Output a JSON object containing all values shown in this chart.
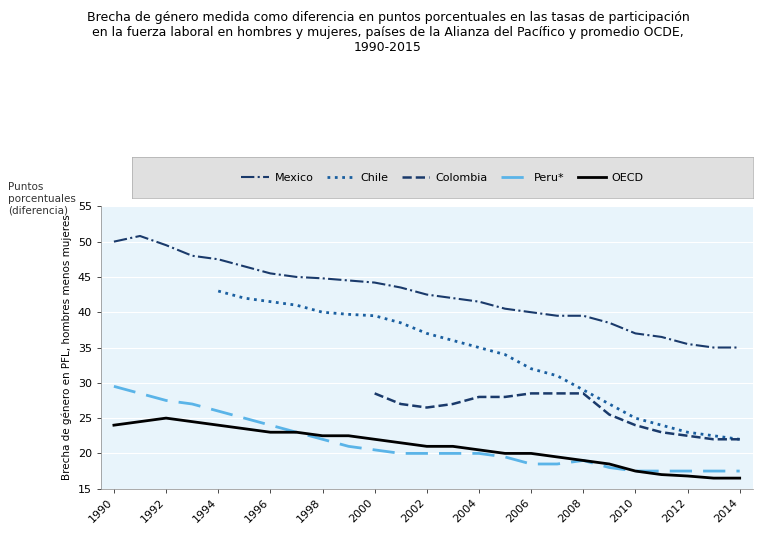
{
  "title": "Brecha de género medida como diferencia en puntos porcentuales en las tasas de participación\nen la fuerza laboral en hombres y mujeres, países de la Alianza del Pacífico y promedio OCDE,\n1990-2015",
  "ylabel": "Brecha de género en PFL, hombres menos mujeres",
  "ylabel_top": "Puntos\nporcentuales\n(diferencia)",
  "plot_bg_color": "#e8f4fb",
  "ylim": [
    15,
    55
  ],
  "yticks": [
    15,
    20,
    25,
    30,
    35,
    40,
    45,
    50,
    55
  ],
  "xticks": [
    1990,
    1992,
    1994,
    1996,
    1998,
    2000,
    2002,
    2004,
    2006,
    2008,
    2010,
    2012,
    2014
  ],
  "series": {
    "Mexico": {
      "x": [
        1990,
        1991,
        1992,
        1993,
        1994,
        1995,
        1996,
        1997,
        1998,
        1999,
        2000,
        2001,
        2002,
        2003,
        2004,
        2005,
        2006,
        2007,
        2008,
        2009,
        2010,
        2011,
        2012,
        2013,
        2014
      ],
      "y": [
        50.0,
        50.8,
        49.5,
        48.0,
        47.5,
        46.5,
        45.5,
        45.0,
        44.8,
        44.5,
        44.2,
        43.5,
        42.5,
        42.0,
        41.5,
        40.5,
        40.0,
        39.5,
        39.5,
        38.5,
        37.0,
        36.5,
        35.5,
        35.0,
        35.0
      ],
      "color": "#1a3a6b",
      "linestyle": "-.",
      "linewidth": 1.5,
      "label": "Mexico"
    },
    "Chile": {
      "x": [
        1994,
        1995,
        1996,
        1997,
        1998,
        1999,
        2000,
        2001,
        2002,
        2003,
        2004,
        2005,
        2006,
        2007,
        2008,
        2009,
        2010,
        2011,
        2012,
        2013,
        2014
      ],
      "y": [
        43.0,
        42.0,
        41.5,
        41.0,
        40.0,
        39.7,
        39.5,
        38.5,
        37.0,
        36.0,
        35.0,
        34.0,
        32.0,
        31.0,
        29.0,
        27.0,
        25.0,
        24.0,
        23.0,
        22.5,
        22.0
      ],
      "color": "#1a5fa0",
      "linestyle": ":",
      "linewidth": 2.0,
      "label": "Chile"
    },
    "Colombia": {
      "x": [
        2000,
        2001,
        2002,
        2003,
        2004,
        2005,
        2006,
        2007,
        2008,
        2009,
        2010,
        2011,
        2012,
        2013,
        2014
      ],
      "y": [
        28.5,
        27.0,
        26.5,
        27.0,
        28.0,
        28.0,
        28.5,
        28.5,
        28.5,
        25.5,
        24.0,
        23.0,
        22.5,
        22.0,
        22.0
      ],
      "color": "#1a3a6b",
      "linestyle": "--",
      "linewidth": 1.8,
      "label": "Colombia"
    },
    "Peru": {
      "x": [
        1990,
        1991,
        1992,
        1993,
        1994,
        1995,
        1996,
        1997,
        1998,
        1999,
        2000,
        2001,
        2002,
        2003,
        2004,
        2005,
        2006,
        2007,
        2008,
        2009,
        2010,
        2011,
        2012,
        2013,
        2014
      ],
      "y": [
        29.5,
        28.5,
        27.5,
        27.0,
        26.0,
        25.0,
        24.0,
        23.0,
        22.0,
        21.0,
        20.5,
        20.0,
        20.0,
        20.0,
        20.0,
        19.5,
        18.5,
        18.5,
        19.0,
        18.0,
        17.5,
        17.5,
        17.5,
        17.5,
        17.5
      ],
      "color": "#5ab4e8",
      "linestyle": "--",
      "linewidth": 2.0,
      "label": "Peru*"
    },
    "OECD": {
      "x": [
        1990,
        1991,
        1992,
        1993,
        1994,
        1995,
        1996,
        1997,
        1998,
        1999,
        2000,
        2001,
        2002,
        2003,
        2004,
        2005,
        2006,
        2007,
        2008,
        2009,
        2010,
        2011,
        2012,
        2013,
        2014
      ],
      "y": [
        24.0,
        24.5,
        25.0,
        24.5,
        24.0,
        23.5,
        23.0,
        23.0,
        22.5,
        22.5,
        22.0,
        21.5,
        21.0,
        21.0,
        20.5,
        20.0,
        20.0,
        19.5,
        19.0,
        18.5,
        17.5,
        17.0,
        16.8,
        16.5,
        16.5
      ],
      "color": "#000000",
      "linestyle": "-",
      "linewidth": 2.0,
      "label": "OECD"
    }
  },
  "legend_bg": "#e0e0e0",
  "legend_edge": "#aaaaaa"
}
